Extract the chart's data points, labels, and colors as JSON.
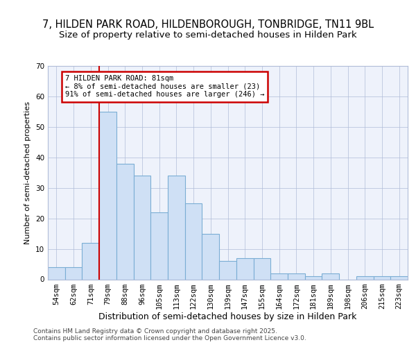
{
  "title1": "7, HILDEN PARK ROAD, HILDENBOROUGH, TONBRIDGE, TN11 9BL",
  "title2": "Size of property relative to semi-detached houses in Hilden Park",
  "xlabel": "Distribution of semi-detached houses by size in Hilden Park",
  "ylabel": "Number of semi-detached properties",
  "categories": [
    "54sqm",
    "62sqm",
    "71sqm",
    "79sqm",
    "88sqm",
    "96sqm",
    "105sqm",
    "113sqm",
    "122sqm",
    "130sqm",
    "139sqm",
    "147sqm",
    "155sqm",
    "164sqm",
    "172sqm",
    "181sqm",
    "189sqm",
    "198sqm",
    "206sqm",
    "215sqm",
    "223sqm"
  ],
  "values": [
    4,
    4,
    12,
    55,
    38,
    34,
    22,
    34,
    25,
    15,
    6,
    7,
    7,
    2,
    2,
    1,
    2,
    0,
    1,
    1,
    1
  ],
  "bar_color": "#cfe0f5",
  "bar_edge_color": "#7aadd4",
  "red_line_index": 3,
  "annotation_text": "7 HILDEN PARK ROAD: 81sqm\n← 8% of semi-detached houses are smaller (23)\n91% of semi-detached houses are larger (246) →",
  "annotation_box_color": "#ffffff",
  "annotation_box_edge": "#cc0000",
  "footer": "Contains HM Land Registry data © Crown copyright and database right 2025.\nContains public sector information licensed under the Open Government Licence v3.0.",
  "ylim": [
    0,
    70
  ],
  "yticks": [
    0,
    10,
    20,
    30,
    40,
    50,
    60,
    70
  ],
  "bg_color": "#eef2fb",
  "grid_color": "#b0bcd8",
  "title1_fontsize": 10.5,
  "title2_fontsize": 9.5,
  "tick_fontsize": 7.5,
  "ylabel_fontsize": 8,
  "xlabel_fontsize": 9,
  "footer_fontsize": 6.5
}
